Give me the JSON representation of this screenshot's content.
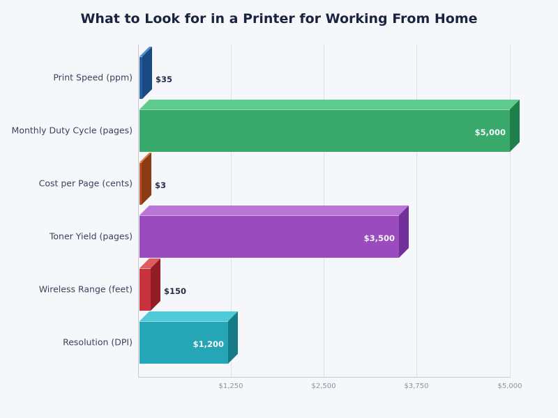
{
  "chart_data": {
    "type": "bar",
    "orientation": "horizontal",
    "title": "What to Look for in a Printer for Working From Home",
    "xlabel": "",
    "ylabel": "",
    "xlim": [
      0,
      5000
    ],
    "x_ticks": [
      "$1,250",
      "$2,500",
      "$3,750",
      "$5,000"
    ],
    "x_tick_values": [
      1250,
      2500,
      3750,
      5000
    ],
    "grid": true,
    "legend": null,
    "style": "3d",
    "categories": [
      "Print Speed (ppm)",
      "Monthly Duty Cycle (pages)",
      "Cost per Page (cents)",
      "Toner Yield (pages)",
      "Wireless Range (feet)",
      "Resolution (DPI)"
    ],
    "values": [
      35,
      5000,
      3,
      3500,
      150,
      1200
    ],
    "value_labels": [
      "$35",
      "$5,000",
      "$3",
      "$3,500",
      "$150",
      "$1,200"
    ],
    "colors": [
      "#2563a8",
      "#38a96a",
      "#b5521f",
      "#9a4bbd",
      "#c8333d",
      "#25a5b5"
    ]
  },
  "bars": [
    {
      "label": "Print Speed (ppm)",
      "value_label": "$35",
      "value": 35,
      "front": "#235fa0",
      "top": "#4e8fd0",
      "side": "#1a4a82"
    },
    {
      "label": "Monthly Duty Cycle (pages)",
      "value_label": "$5,000",
      "value": 5000,
      "front": "#38a96a",
      "top": "#5ccc8c",
      "side": "#1f7f4a"
    },
    {
      "label": "Cost per Page (cents)",
      "value_label": "$3",
      "value": 3,
      "front": "#b5521f",
      "top": "#e07e45",
      "side": "#8c3c14"
    },
    {
      "label": "Toner Yield (pages)",
      "value_label": "$3,500",
      "value": 3500,
      "front": "#9a4bbd",
      "top": "#bb74d8",
      "side": "#72309a"
    },
    {
      "label": "Wireless Range (feet)",
      "value_label": "$150",
      "value": 150,
      "front": "#c8333d",
      "top": "#e05a62",
      "side": "#931d25"
    },
    {
      "label": "Resolution (DPI)",
      "value_label": "$1,200",
      "value": 1200,
      "front": "#25a5b5",
      "top": "#4ecbd8",
      "side": "#177a87"
    }
  ]
}
